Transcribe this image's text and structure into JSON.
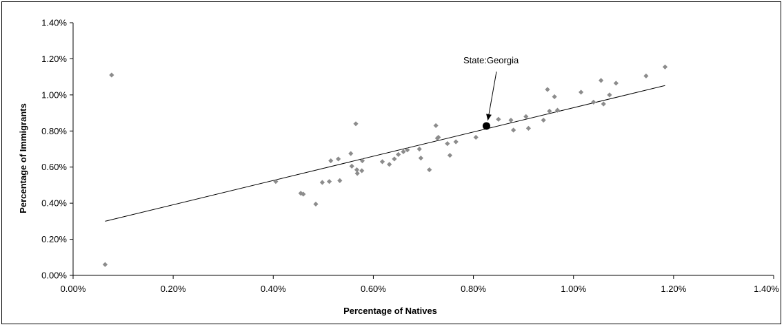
{
  "chart_data": {
    "type": "scatter",
    "title": "",
    "xlabel": "Percentage of Natives",
    "ylabel": "Percentage of Immigrants",
    "xlim": [
      0,
      1.4
    ],
    "ylim": [
      0,
      1.4
    ],
    "x_ticks": [
      "0.00%",
      "0.20%",
      "0.40%",
      "0.60%",
      "0.80%",
      "1.00%",
      "1.20%",
      "1.40%"
    ],
    "y_ticks": [
      "0.00%",
      "0.20%",
      "0.40%",
      "0.60%",
      "0.80%",
      "1.00%",
      "1.20%",
      "1.40%"
    ],
    "grid": false,
    "marker_color": "#8c8c8c",
    "highlight_color": "#000000",
    "points": [
      [
        0.064,
        0.06
      ],
      [
        0.077,
        1.11
      ],
      [
        0.405,
        0.52
      ],
      [
        0.455,
        0.455
      ],
      [
        0.46,
        0.45
      ],
      [
        0.485,
        0.395
      ],
      [
        0.498,
        0.515
      ],
      [
        0.512,
        0.52
      ],
      [
        0.515,
        0.635
      ],
      [
        0.53,
        0.645
      ],
      [
        0.533,
        0.525
      ],
      [
        0.555,
        0.675
      ],
      [
        0.557,
        0.605
      ],
      [
        0.565,
        0.84
      ],
      [
        0.567,
        0.585
      ],
      [
        0.568,
        0.565
      ],
      [
        0.577,
        0.58
      ],
      [
        0.578,
        0.635
      ],
      [
        0.618,
        0.63
      ],
      [
        0.632,
        0.615
      ],
      [
        0.642,
        0.645
      ],
      [
        0.65,
        0.67
      ],
      [
        0.66,
        0.685
      ],
      [
        0.668,
        0.695
      ],
      [
        0.692,
        0.7
      ],
      [
        0.695,
        0.65
      ],
      [
        0.712,
        0.585
      ],
      [
        0.725,
        0.83
      ],
      [
        0.728,
        0.76
      ],
      [
        0.73,
        0.765
      ],
      [
        0.748,
        0.73
      ],
      [
        0.753,
        0.665
      ],
      [
        0.765,
        0.74
      ],
      [
        0.805,
        0.765
      ],
      [
        0.85,
        0.865
      ],
      [
        0.875,
        0.86
      ],
      [
        0.88,
        0.805
      ],
      [
        0.905,
        0.88
      ],
      [
        0.91,
        0.815
      ],
      [
        0.94,
        0.86
      ],
      [
        0.948,
        1.03
      ],
      [
        0.952,
        0.91
      ],
      [
        0.962,
        0.99
      ],
      [
        0.968,
        0.915
      ],
      [
        1.015,
        1.015
      ],
      [
        1.04,
        0.96
      ],
      [
        1.055,
        1.08
      ],
      [
        1.06,
        0.95
      ],
      [
        1.072,
        1.0
      ],
      [
        1.085,
        1.065
      ],
      [
        1.145,
        1.105
      ],
      [
        1.183,
        1.155
      ]
    ],
    "highlight": {
      "x": 0.826,
      "y": 0.828,
      "label": "State:Georgia"
    },
    "trendline": {
      "x1": 0.064,
      "y1": 0.3,
      "x2": 1.183,
      "y2": 1.052
    }
  }
}
